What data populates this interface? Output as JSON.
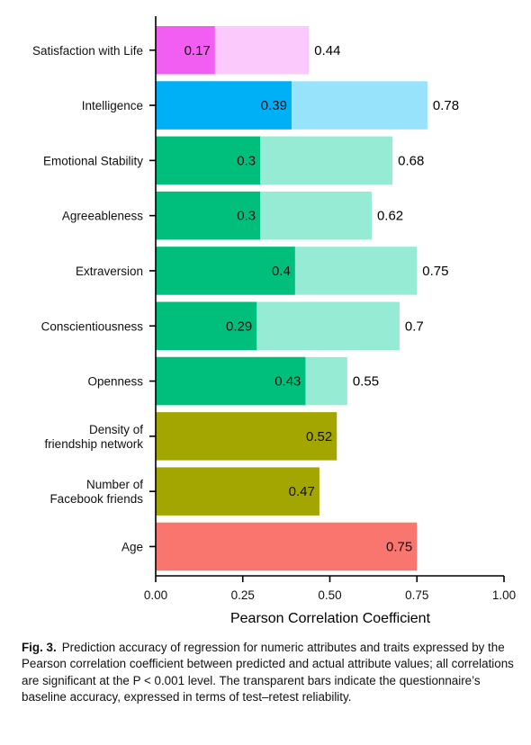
{
  "chart_data": {
    "type": "bar",
    "orientation": "horizontal",
    "categories": [
      "Satisfaction with Life",
      "Intelligence",
      "Emotional Stability",
      "Agreeableness",
      "Extraversion",
      "Conscientiousness",
      "Openness",
      "Density of\nfriendship network",
      "Number of\nFacebook friends",
      "Age"
    ],
    "series": [
      {
        "values": [
          0.17,
          0.39,
          0.3,
          0.3,
          0.4,
          0.29,
          0.43,
          0.52,
          0.47,
          0.75
        ],
        "labels": [
          "0.17",
          "0.39",
          "0.3",
          "0.3",
          "0.4",
          "0.29",
          "0.43",
          "0.52",
          "0.47",
          "0.75"
        ]
      },
      {
        "values": [
          0.44,
          0.78,
          0.68,
          0.62,
          0.75,
          0.7,
          0.55,
          null,
          null,
          null
        ],
        "labels": [
          "0.44",
          "0.78",
          "0.68",
          "0.62",
          "0.75",
          "0.7",
          "0.55",
          null,
          null,
          null
        ]
      }
    ],
    "colors": {
      "solid": [
        "#f25ef2",
        "#00b0f6",
        "#00bf7d",
        "#00bf7d",
        "#00bf7d",
        "#00bf7d",
        "#00bf7d",
        "#a3a500",
        "#a3a500",
        "#f8766d"
      ],
      "baseline": [
        "#fbc9fb",
        "#96e3fb",
        "#96ebd4",
        "#96ebd4",
        "#96ebd4",
        "#96ebd4",
        "#96ebd4",
        null,
        null,
        null
      ]
    },
    "xlabel": "Pearson Correlation Coefficient",
    "ylabel": "",
    "xlim": [
      0,
      1
    ],
    "xticks": [
      0,
      0.25,
      0.5,
      0.75,
      1
    ],
    "xtick_labels": [
      "0.00",
      "0.25",
      "0.50",
      "0.75",
      "1.00"
    ],
    "grid": false
  },
  "caption": {
    "label": "Fig. 3.",
    "text": "Prediction accuracy of regression for numeric attributes and traits expressed by the Pearson correlation coefficient between predicted and actual attribute values; all correlations are significant at the P < 0.001 level. The transparent bars indicate the questionnaire’s baseline accuracy, expressed in terms of test–retest reliability."
  }
}
